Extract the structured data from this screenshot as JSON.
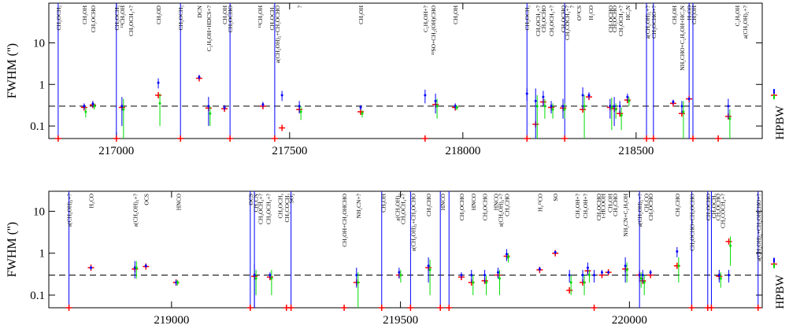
{
  "chart_data": [
    {
      "type": "scatter",
      "log": true,
      "ylabel": "FWHM ('')",
      "hpbw_label": "HPBW",
      "xlim": [
        216805,
        218864
      ],
      "xticks": [
        217000,
        217500,
        218000,
        218500
      ],
      "ylim": [
        0.05,
        90
      ],
      "yticks": [
        0.1,
        1,
        10
      ],
      "hline": 0.3,
      "x": [
        216832,
        216907,
        216932,
        217000,
        217016,
        217121,
        217185,
        217239,
        217266,
        217312,
        217328,
        217423,
        217457,
        217478,
        217528,
        217705,
        217891,
        217921,
        217978,
        218185,
        218210,
        218232,
        218255,
        218289,
        218294,
        218346,
        218364,
        218425,
        218437,
        218453,
        218475,
        218530,
        218550,
        218607,
        218632,
        218653,
        218664,
        218737,
        218766
      ],
      "series": [
        {
          "color": "#ff0000",
          "marker": "plus",
          "hpbw": 0.55,
          "values": [
            0.05,
            0.28,
            0.32,
            0.05,
            0.28,
            0.55,
            0.05,
            1.4,
            0.27,
            0.26,
            0.05,
            0.3,
            0.05,
            0.09,
            0.25,
            0.22,
            0.05,
            0.33,
            0.28,
            0.05,
            0.11,
            0.38,
            0.28,
            0.27,
            0.05,
            0.25,
            0.5,
            0.28,
            0.26,
            0.2,
            0.42,
            0.05,
            0.05,
            0.35,
            0.2,
            0.45,
            0.05,
            0.05,
            0.17
          ]
        },
        {
          "color": "#0000ff",
          "marker": "errorbar",
          "hpbw": 0.68,
          "values": [
            null,
            0.3,
            0.34,
            null,
            0.3,
            1.1,
            null,
            1.5,
            0.3,
            0.28,
            null,
            0.33,
            null,
            0.55,
            0.3,
            0.28,
            0.55,
            0.4,
            0.3,
            0.6,
            0.4,
            0.5,
            0.3,
            0.3,
            null,
            0.55,
            0.55,
            0.3,
            0.3,
            0.3,
            0.5,
            null,
            null,
            0.38,
            0.3,
            0.45,
            null,
            null,
            0.3
          ],
          "errors": [
            null,
            0.05,
            0.06,
            null,
            0.2,
            0.3,
            null,
            0.2,
            0.2,
            0.04,
            null,
            0.05,
            null,
            0.15,
            0.1,
            0.04,
            0.2,
            0.2,
            0.05,
            0.2,
            0.4,
            0.2,
            0.1,
            0.15,
            null,
            0.3,
            0.1,
            0.15,
            0.2,
            0.1,
            0.1,
            null,
            null,
            0.05,
            0.1,
            0.05,
            null,
            null,
            0.15
          ]
        },
        {
          "color": "#00dd00",
          "marker": "errorbar",
          "hpbw": 0.5,
          "values": [
            null,
            0.22,
            0.3,
            null,
            0.25,
            0.35,
            null,
            null,
            0.2,
            null,
            null,
            null,
            null,
            null,
            0.22,
            0.2,
            null,
            0.3,
            0.28,
            null,
            0.3,
            0.3,
            0.25,
            0.25,
            null,
            0.3,
            null,
            0.28,
            0.25,
            0.18,
            0.4,
            null,
            null,
            null,
            0.22,
            null,
            null,
            null,
            0.15
          ],
          "errors": [
            null,
            0.06,
            0.05,
            null,
            0.2,
            0.25,
            null,
            null,
            0.1,
            null,
            null,
            null,
            null,
            null,
            0.08,
            0.04,
            null,
            0.15,
            0.04,
            null,
            0.25,
            0.15,
            0.1,
            0.1,
            null,
            0.25,
            null,
            0.2,
            0.1,
            0.1,
            0.1,
            null,
            null,
            null,
            0.18,
            null,
            null,
            null,
            0.1
          ]
        }
      ],
      "vlines": {
        "color": "#0000ff",
        "x": [
          216832,
          217000,
          217185,
          217328,
          217457,
          218185,
          218294,
          218530,
          218550,
          218653,
          218664
        ]
      },
      "annotations": [
        {
          "x": 216832,
          "label": "CH₃OCH₃"
        },
        {
          "x": 216907,
          "label": "CH₃OH"
        },
        {
          "x": 216932,
          "label": "CH₃OCHO"
        },
        {
          "x": 217000,
          "label": "CH₃OCH₃"
        },
        {
          "x": 217016,
          "label": "¹³CH₃OH"
        },
        {
          "x": 217041,
          "label": "CH₃OCH₃+?"
        },
        {
          "x": 217121,
          "label": "CH₃OD"
        },
        {
          "x": 217185,
          "label": "CH₃OCH₃"
        },
        {
          "x": 217239,
          "label": "DCN"
        },
        {
          "x": 217266,
          "label": "C₂H₅OH+HDCS+?"
        },
        {
          "x": 217312,
          "label": "CH₃OH"
        },
        {
          "x": 217328,
          "label": "CH₃OCHO"
        },
        {
          "x": 217414,
          "label": "¹³CH₃OH"
        },
        {
          "x": 217448,
          "label": "CH₃OCH₃"
        },
        {
          "x": 217464,
          "label": "a(CH₂OH)₂+CH₃OCHO"
        },
        {
          "x": 217528,
          "label": "?"
        },
        {
          "x": 217705,
          "label": "CH₃OH"
        },
        {
          "x": 217891,
          "label": "C₂H₅OH+?"
        },
        {
          "x": 217914,
          "label": "³³SO+CH₂(OH)CHO"
        },
        {
          "x": 217978,
          "label": "CH₃OH"
        },
        {
          "x": 218185,
          "label": "CH₃OCH₃"
        },
        {
          "x": 218216,
          "label": "CH₃OCH₃+?"
        },
        {
          "x": 218232,
          "label": "CH₃OCHO"
        },
        {
          "x": 218255,
          "label": "CH₃OCH₃+?"
        },
        {
          "x": 218289,
          "label": "CH₃OCHO"
        },
        {
          "x": 218300,
          "label": "CH₃COCH₃+?"
        },
        {
          "x": 218314,
          "label": "?"
        },
        {
          "x": 218334,
          "label": "O¹³CS"
        },
        {
          "x": 218369,
          "label": "H₂CO"
        },
        {
          "x": 218425,
          "label": "CH₃OCHO"
        },
        {
          "x": 218437,
          "label": "CH₃OCHO"
        },
        {
          "x": 218455,
          "label": "CH₃OCH₃+?"
        },
        {
          "x": 218475,
          "label": "HC₃N"
        },
        {
          "x": 218532,
          "label": "a(CH₂OH)₂+?"
        },
        {
          "x": 218550,
          "label": "CH₃OCHO+?"
        },
        {
          "x": 218609,
          "label": "CH₃OH"
        },
        {
          "x": 218632,
          "label": "NH₂CHO+C₂H₅OH+HC₃N"
        },
        {
          "x": 218653,
          "label": "H₂CO"
        },
        {
          "x": 218666,
          "label": "CH₃OH"
        },
        {
          "x": 218791,
          "label": "C₂H₅OH"
        },
        {
          "x": 218814,
          "label": "a(CH₂OH)₂+?"
        }
      ]
    },
    {
      "type": "scatter",
      "log": true,
      "ylabel": "FWHM ('')",
      "hpbw_label": "HPBW",
      "xlim": [
        218732,
        220290
      ],
      "xticks": [
        219000,
        219500,
        220000
      ],
      "ylim": [
        0.05,
        30
      ],
      "yticks": [
        0.1,
        1,
        10
      ],
      "hline": 0.3,
      "x": [
        218776,
        218824,
        218920,
        218944,
        219010,
        219172,
        219181,
        219215,
        219251,
        219261,
        219377,
        219404,
        219459,
        219497,
        219522,
        219561,
        219587,
        219606,
        219633,
        219655,
        219684,
        219713,
        219732,
        219804,
        219838,
        219869,
        219898,
        219909,
        219923,
        219940,
        219954,
        219991,
        220022,
        220029,
        220046,
        220104,
        220136,
        220171,
        220179,
        220196,
        220217,
        220281
      ],
      "series": [
        {
          "color": "#ff0000",
          "marker": "plus",
          "hpbw": 0.55,
          "values": [
            0.05,
            0.45,
            0.42,
            0.48,
            0.2,
            0.05,
            0.28,
            0.27,
            0.05,
            0.05,
            0.05,
            0.2,
            0.05,
            0.3,
            0.05,
            0.45,
            0.05,
            0.05,
            0.27,
            0.2,
            0.22,
            0.3,
            0.85,
            0.4,
            1.0,
            0.13,
            0.2,
            0.38,
            0.05,
            0.3,
            0.35,
            0.42,
            0.3,
            0.22,
            0.3,
            0.5,
            0.05,
            0.05,
            0.05,
            0.28,
            1.9,
            0.05
          ]
        },
        {
          "color": "#0000ff",
          "marker": "errorbar",
          "hpbw": 0.68,
          "values": [
            null,
            0.45,
            0.45,
            0.5,
            0.2,
            null,
            0.3,
            0.3,
            null,
            null,
            null,
            0.3,
            null,
            0.35,
            null,
            0.5,
            null,
            null,
            0.3,
            0.3,
            0.3,
            0.35,
            0.95,
            0.42,
            1.05,
            0.3,
            0.3,
            0.45,
            0.3,
            0.35,
            0.35,
            0.5,
            0.3,
            0.3,
            0.35,
            1.1,
            null,
            null,
            null,
            0.3,
            0.3,
            null
          ],
          "errors": [
            null,
            0.05,
            0.2,
            0.05,
            0.03,
            null,
            0.25,
            0.05,
            null,
            null,
            null,
            0.15,
            null,
            0.1,
            null,
            0.3,
            null,
            null,
            0.05,
            0.1,
            0.1,
            0.1,
            0.3,
            0.05,
            0.1,
            0.1,
            0.1,
            0.15,
            0.1,
            0.05,
            0.03,
            0.3,
            0.1,
            0.1,
            0.05,
            0.3,
            null,
            null,
            null,
            0.1,
            0.1,
            null
          ]
        },
        {
          "color": "#00dd00",
          "marker": "errorbar",
          "hpbw": 0.5,
          "values": [
            null,
            null,
            0.45,
            null,
            0.2,
            null,
            0.25,
            0.25,
            null,
            null,
            null,
            0.2,
            null,
            0.3,
            null,
            0.4,
            null,
            null,
            null,
            0.2,
            0.2,
            0.25,
            0.8,
            null,
            null,
            0.2,
            0.2,
            0.3,
            null,
            null,
            null,
            0.4,
            0.25,
            0.2,
            null,
            0.5,
            null,
            null,
            null,
            0.25,
            1.5,
            null
          ],
          "errors": [
            null,
            null,
            0.2,
            null,
            0.03,
            null,
            0.15,
            0.15,
            null,
            null,
            null,
            0.15,
            null,
            0.1,
            null,
            0.3,
            null,
            null,
            null,
            0.1,
            0.1,
            0.15,
            0.2,
            null,
            null,
            0.1,
            0.1,
            0.1,
            null,
            null,
            null,
            0.2,
            0.1,
            0.1,
            null,
            0.3,
            null,
            null,
            null,
            0.1,
            1.0,
            null
          ]
        }
      ],
      "vlines": {
        "color": "#0000ff",
        "x": [
          218776,
          219172,
          219181,
          219261,
          219459,
          219522,
          219587,
          219606,
          220022,
          220136,
          220171,
          220179,
          220281
        ]
      },
      "annotations": [
        {
          "x": 218776,
          "label": "a(CH₂OH)₂+?"
        },
        {
          "x": 218824,
          "label": "H₂CO"
        },
        {
          "x": 218920,
          "label": "a(CH₂OH)₂+?"
        },
        {
          "x": 218944,
          "label": "OCS"
        },
        {
          "x": 219015,
          "label": "HNCO"
        },
        {
          "x": 219172,
          "label": "OCS"
        },
        {
          "x": 219183,
          "label": "CH₃CN"
        },
        {
          "x": 219194,
          "label": "CH₃OCH₃+?"
        },
        {
          "x": 219211,
          "label": "CH₃OCH₃+?"
        },
        {
          "x": 219237,
          "label": "CH₃OCH₃"
        },
        {
          "x": 219251,
          "label": "CH₃COCH₃"
        },
        {
          "x": 219261,
          "label": "SO₂"
        },
        {
          "x": 219377,
          "label": "CH₃OH+CH₂OHCHO"
        },
        {
          "x": 219408,
          "label": "NH₂CN+?"
        },
        {
          "x": 219462,
          "label": "CH₃OH"
        },
        {
          "x": 219493,
          "label": "a(CH₂OH)₂"
        },
        {
          "x": 219505,
          "label": "CH₃OCH₃+?"
        },
        {
          "x": 219527,
          "label": "a(CH₂OH)₂+CH₃OCHO"
        },
        {
          "x": 219561,
          "label": "CH₃CHO"
        },
        {
          "x": 219592,
          "label": "HNCO"
        },
        {
          "x": 219633,
          "label": "CH₃OCHO"
        },
        {
          "x": 219659,
          "label": "HNCO"
        },
        {
          "x": 219684,
          "label": "CH₃OCHO"
        },
        {
          "x": 219708,
          "label": "HNCO"
        },
        {
          "x": 219718,
          "label": "a(CH₂OH)₂+?"
        },
        {
          "x": 219732,
          "label": "CH₃CHO"
        },
        {
          "x": 219804,
          "label": "H₂¹³CO"
        },
        {
          "x": 219838,
          "label": "SO"
        },
        {
          "x": 219886,
          "label": "CH₃OH+?"
        },
        {
          "x": 219903,
          "label": "CH₃OH+?"
        },
        {
          "x": 219932,
          "label": "CH₃OCHO"
        },
        {
          "x": 219942,
          "label": "t-HCOOH"
        },
        {
          "x": 219957,
          "label": "CH₃OH"
        },
        {
          "x": 219968,
          "label": "CH₃CHO"
        },
        {
          "x": 219991,
          "label": "NH₂CN+C₂H₅OH"
        },
        {
          "x": 220022,
          "label": "a(CH₂OH)₂+?"
        },
        {
          "x": 220036,
          "label": "CH₂CO"
        },
        {
          "x": 220046,
          "label": "CH₃OCHO"
        },
        {
          "x": 220104,
          "label": "CH₃CHO"
        },
        {
          "x": 220136,
          "label": "CH₃OCHO+CH₃OCHO"
        },
        {
          "x": 220171,
          "label": "CH₃OCHO"
        },
        {
          "x": 220183,
          "label": "CH₃OCH₃"
        },
        {
          "x": 220193,
          "label": "CH₃OCHO"
        },
        {
          "x": 220203,
          "label": "CH₃COCH₃+?"
        },
        {
          "x": 220281,
          "label": "a(CH₂OH)₂+CH₂OHCHO+?"
        }
      ]
    }
  ]
}
